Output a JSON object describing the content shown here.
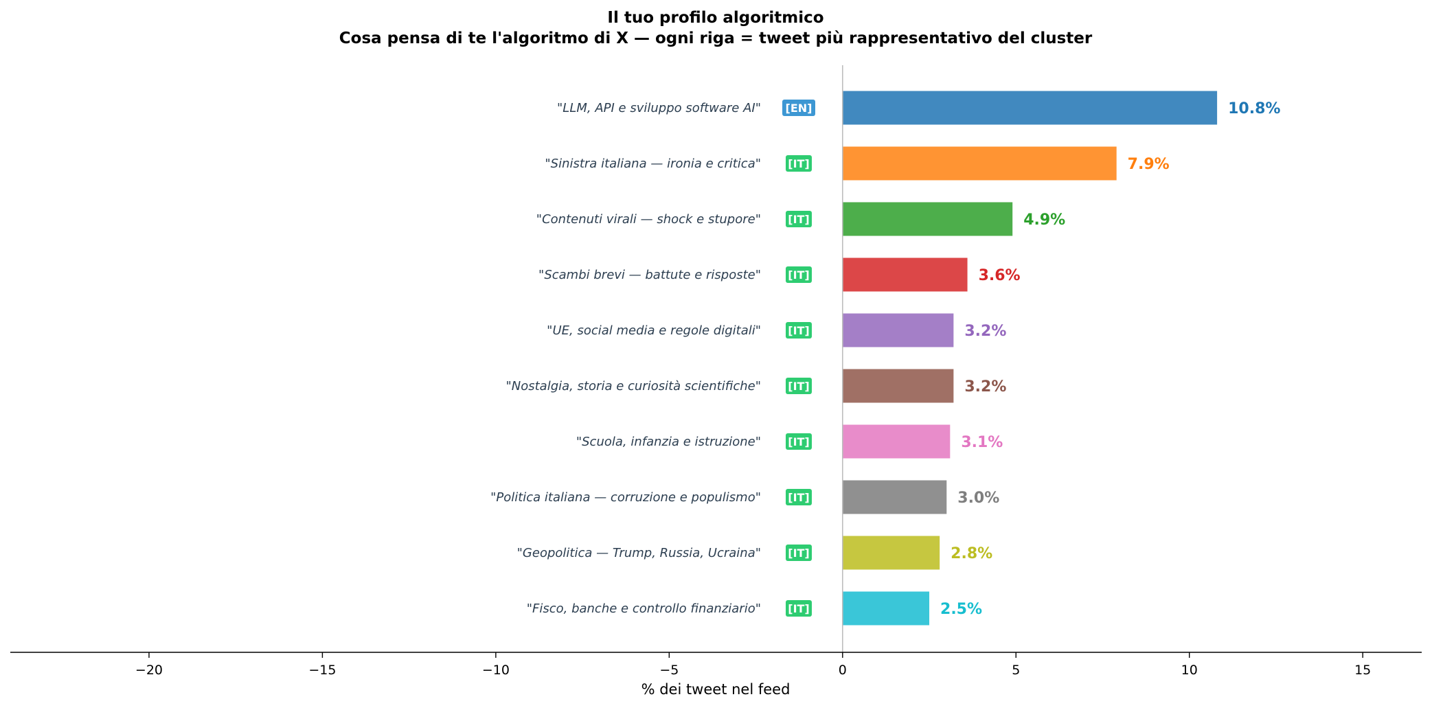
{
  "chart_data": {
    "type": "bar",
    "orientation": "horizontal",
    "title": "Il tuo profilo algoritmico",
    "subtitle": "Cosa pensa di te l'algoritmo di X  —  ogni riga = tweet più rappresentativo del cluster",
    "xlabel": "% dei tweet nel feed",
    "ylabel": "",
    "xlim": [
      -24,
      16.7
    ],
    "xticks": [
      -20,
      -15,
      -10,
      -5,
      0,
      5,
      10,
      15
    ],
    "xtick_labels": [
      "−20",
      "−15",
      "−10",
      "−5",
      "0",
      "5",
      "10",
      "15"
    ],
    "grid": false,
    "categories": [
      "\"LLM, API e sviluppo software AI\"",
      "\"Sinistra italiana — ironia e critica\"",
      "\"Contenuti virali — shock e stupore\"",
      "\"Scambi brevi — battute e risposte\"",
      "\"UE, social media e regole digitali\"",
      "\"Nostalgia, storia e curiosità scientifiche\"",
      "\"Scuola, infanzia e istruzione\"",
      "\"Politica italiana — corruzione e populismo\"",
      "\"Geopolitica — Trump, Russia, Ucraina\"",
      "\"Fisco, banche e controllo finanziario\""
    ],
    "values": [
      10.8,
      7.9,
      4.9,
      3.6,
      3.2,
      3.2,
      3.1,
      3.0,
      2.8,
      2.5
    ],
    "value_labels": [
      "10.8%",
      "7.9%",
      "4.9%",
      "3.6%",
      "3.2%",
      "3.2%",
      "3.1%",
      "3.0%",
      "2.8%",
      "2.5%"
    ],
    "languages": [
      "[EN]",
      "[IT]",
      "[IT]",
      "[IT]",
      "[IT]",
      "[IT]",
      "[IT]",
      "[IT]",
      "[IT]",
      "[IT]"
    ],
    "bar_colors": [
      "#4189bf",
      "#ff9433",
      "#4dae4b",
      "#dc4748",
      "#a47fc7",
      "#a07065",
      "#e88cca",
      "#909090",
      "#c6c740",
      "#3ac6d8"
    ],
    "label_colors": [
      "#1f77b4",
      "#ff7f0e",
      "#2ca02c",
      "#d62728",
      "#9467bd",
      "#8c564b",
      "#e377c2",
      "#7f7f7f",
      "#bcbd22",
      "#17becf"
    ],
    "language_colors": {
      "[EN]": "#3d97d3",
      "[IT]": "#2ecc71"
    }
  }
}
